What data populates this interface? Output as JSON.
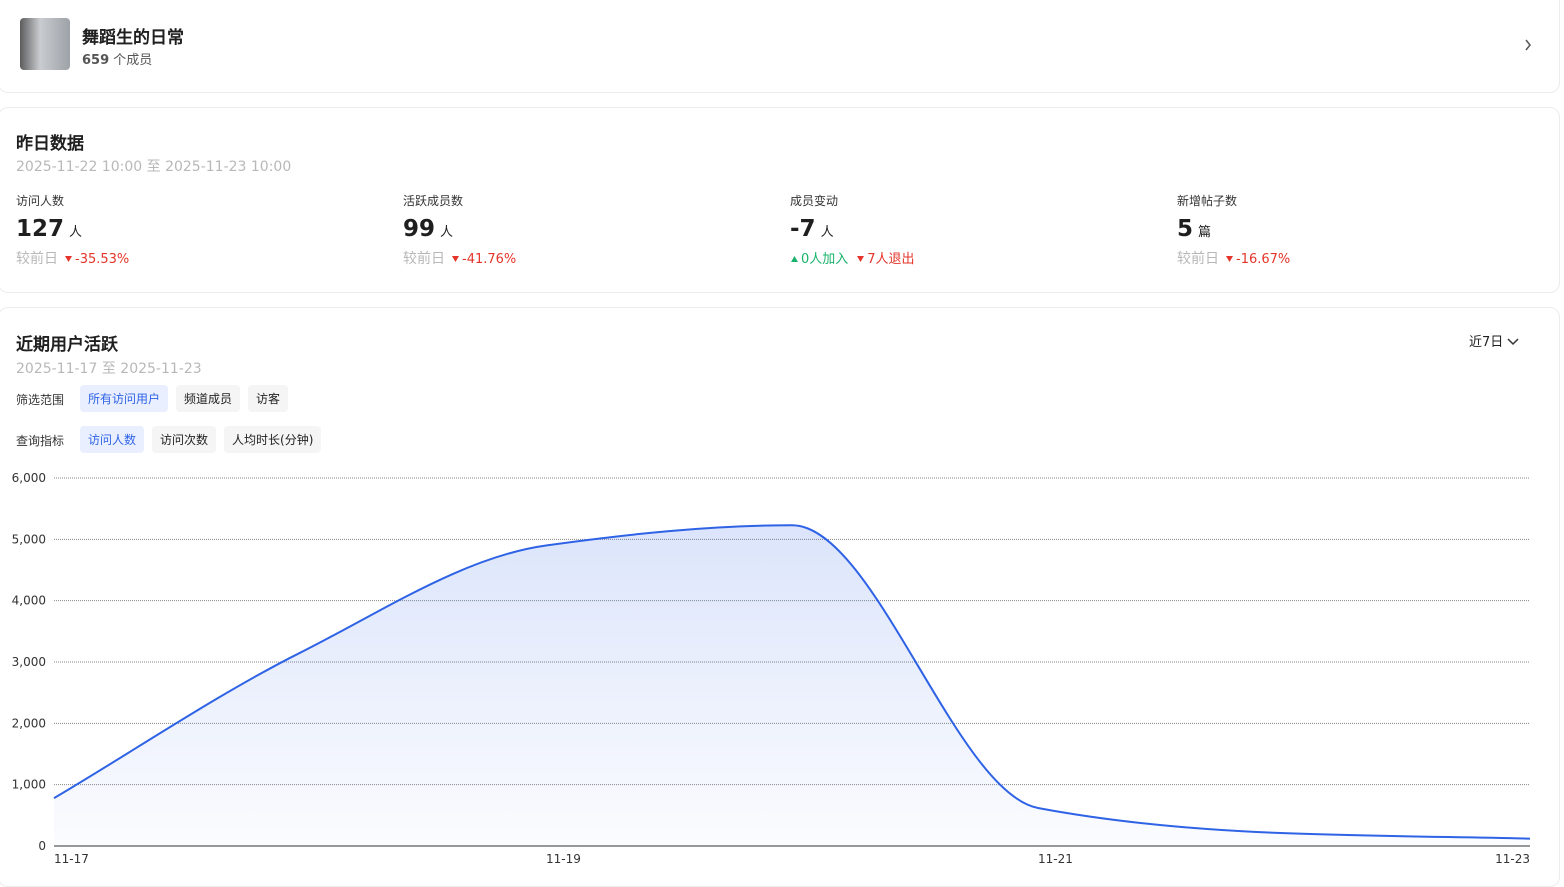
{
  "header": {
    "group_name": "舞蹈生的日常",
    "member_count": 659,
    "member_unit": "个成员"
  },
  "yesterday": {
    "title": "昨日数据",
    "range_start": "2025-11-22 10:00",
    "range_sep": "至",
    "range_end": "2025-11-23 10:00",
    "stats": [
      {
        "label": "访问人数",
        "value": 127,
        "unit": "人",
        "compare": "较前日",
        "change": "-35.53%"
      },
      {
        "label": "活跃成员数",
        "value": 99,
        "unit": "人",
        "compare": "较前日",
        "change": "-41.76%"
      },
      {
        "label": "成员变动",
        "value": -7,
        "unit": "人",
        "joined": "0人加入",
        "left": "7人退出"
      },
      {
        "label": "新增帖子数",
        "value": 5,
        "unit": "篇",
        "compare": "较前日",
        "change": "-16.67%"
      }
    ]
  },
  "activity": {
    "title": "近期用户活跃",
    "range_start": "2025-11-17",
    "range_sep": "至",
    "range_end": "2025-11-23",
    "period": "近7日",
    "filter_label": "筛选范围",
    "filters": [
      "所有访问用户",
      "频道成员",
      "访客"
    ],
    "metric_label": "查询指标",
    "metrics": [
      "访问人数",
      "访问次数",
      "人均时长(分钟)"
    ]
  },
  "chart_data": {
    "type": "area",
    "categories": [
      "11-17",
      null,
      "11-19",
      null,
      "11-21",
      null,
      "11-23"
    ],
    "series": [
      {
        "name": "访问人数",
        "color": "#2f63e6",
        "values": [
          780,
          3150,
          4900,
          5230,
          620,
          210,
          120
        ]
      }
    ],
    "ylim": [
      0,
      6000
    ],
    "yticks": [
      0,
      {
        "value": 1000,
        "label": "1,000"
      },
      {
        "value": 2000,
        "label": "2,000"
      },
      {
        "value": 3000,
        "label": "3,000"
      },
      {
        "value": 4000,
        "label": "4,000"
      },
      {
        "value": 5000,
        "label": "5,000"
      },
      {
        "value": 6000,
        "label": "6,000"
      }
    ],
    "grid": true
  }
}
